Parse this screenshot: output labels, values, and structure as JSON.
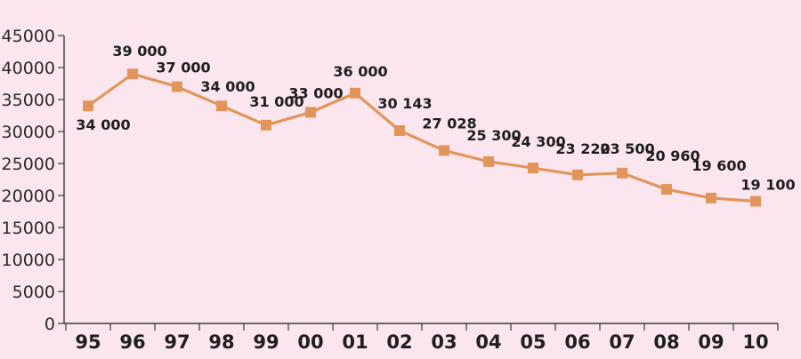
{
  "chart_data": {
    "type": "line",
    "title": "",
    "xlabel": "",
    "ylabel": "",
    "categories": [
      "95",
      "96",
      "97",
      "98",
      "99",
      "00",
      "01",
      "02",
      "03",
      "04",
      "05",
      "06",
      "07",
      "08",
      "09",
      "10"
    ],
    "series": [
      {
        "values": [
          34000,
          39000,
          37000,
          34000,
          31000,
          33000,
          36000,
          30143,
          27028,
          25300,
          24300,
          23220,
          23500,
          20960,
          19600,
          19100
        ],
        "labels": [
          "34 000",
          "39 000",
          "37 000",
          "34 000",
          "31 000",
          "33 000",
          "36 000",
          "30 143",
          "27 028",
          "25 300",
          "24 300",
          "23 220",
          "23 500",
          "20 960",
          "19 600",
          "19 100"
        ]
      }
    ],
    "ylim": [
      0,
      45000
    ],
    "yticks": [
      "0",
      "5000",
      "10000",
      "15000",
      "20000",
      "25000",
      "30000",
      "35000",
      "40000",
      "45000"
    ],
    "grid": false,
    "colors": {
      "line": "#e2955a",
      "marker": "#e2955a",
      "axis": "#3a3a3a",
      "background": "#fbe6ef"
    }
  }
}
